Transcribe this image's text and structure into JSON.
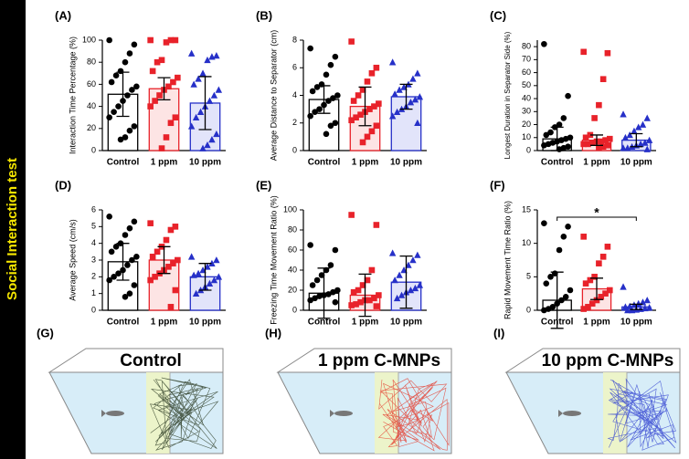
{
  "side_title": "Social Interaction test",
  "chart_data": [
    {
      "type": "bar",
      "label": "(A)",
      "y_label": "Interaction Time Percentage (%)",
      "categories": [
        "Control",
        "1 ppm",
        "10 ppm"
      ],
      "values": [
        51,
        56,
        43
      ],
      "errors": [
        20,
        10,
        24
      ],
      "colors": [
        "#000000",
        "#e8222a",
        "#2630c8"
      ],
      "fills": [
        "#ffffff",
        "#fde4e4",
        "#e2e4fa"
      ],
      "markers": [
        "circle",
        "square",
        "triangle"
      ],
      "ylim": [
        0,
        100
      ],
      "yticks": [
        0,
        20,
        40,
        60,
        80,
        100
      ],
      "points": [
        [
          100,
          96,
          88,
          80,
          72,
          68,
          62,
          58,
          55,
          50,
          45,
          40,
          35,
          30,
          22,
          18,
          12,
          10
        ],
        [
          100,
          100,
          100,
          98,
          82,
          80,
          72,
          66,
          62,
          58,
          55,
          50,
          45,
          40,
          30,
          25,
          12,
          2
        ],
        [
          88,
          86,
          85,
          82,
          70,
          65,
          60,
          55,
          50,
          45,
          40,
          35,
          30,
          22,
          15,
          10,
          5,
          2
        ]
      ]
    },
    {
      "type": "bar",
      "label": "(B)",
      "y_label": "Average Distance to Separator (cm)",
      "categories": [
        "Control",
        "1 ppm",
        "10 ppm"
      ],
      "values": [
        3.7,
        3.2,
        3.9
      ],
      "errors": [
        1.0,
        1.4,
        0.9
      ],
      "colors": [
        "#000000",
        "#e8222a",
        "#2630c8"
      ],
      "fills": [
        "#ffffff",
        "#fde4e4",
        "#e2e4fa"
      ],
      "markers": [
        "circle",
        "square",
        "triangle"
      ],
      "ylim": [
        0,
        8
      ],
      "yticks": [
        0,
        2,
        4,
        6,
        8
      ],
      "points": [
        [
          7.4,
          6.8,
          6.2,
          5.5,
          4.8,
          4.6,
          4.3,
          4.0,
          3.8,
          3.6,
          3.3,
          3.0,
          2.8,
          2.5,
          2.0,
          1.8,
          1.2
        ],
        [
          7.9,
          6.0,
          5.6,
          5.0,
          4.4,
          4.0,
          3.6,
          3.4,
          3.2,
          3.0,
          2.8,
          2.6,
          2.4,
          2.2,
          1.8,
          1.4,
          1.0,
          0.6
        ],
        [
          6.4,
          5.6,
          5.2,
          4.8,
          4.6,
          4.4,
          4.1,
          3.9,
          3.7,
          3.5,
          3.2,
          3.0,
          2.8,
          2.5,
          2.0
        ]
      ]
    },
    {
      "type": "bar",
      "label": "(C)",
      "y_label": "Longest  Duration in Separator Side (%)",
      "categories": [
        "Control",
        "1 ppm",
        "10 ppm"
      ],
      "values": [
        9,
        8,
        8
      ],
      "errors": [
        9,
        4,
        5
      ],
      "colors": [
        "#000000",
        "#e8222a",
        "#2630c8"
      ],
      "fills": [
        "#ffffff",
        "#fde4e4",
        "#e2e4fa"
      ],
      "markers": [
        "circle",
        "square",
        "triangle"
      ],
      "ylim": [
        0,
        85
      ],
      "yticks": [
        0,
        10,
        20,
        30,
        40,
        50,
        60,
        70,
        80
      ],
      "points": [
        [
          82,
          42,
          25,
          20,
          18,
          14,
          12,
          10,
          9,
          8,
          7,
          6,
          5,
          4,
          3,
          2,
          1
        ],
        [
          76,
          75,
          55,
          35,
          25,
          12,
          10,
          9,
          8,
          7,
          7,
          6,
          5,
          5,
          4,
          3,
          2
        ],
        [
          28,
          25,
          20,
          18,
          15,
          12,
          10,
          8,
          6,
          5,
          4,
          3,
          2,
          2,
          1
        ]
      ]
    },
    {
      "type": "bar",
      "label": "(D)",
      "y_label": "Average Speed (cm/s)",
      "categories": [
        "Control",
        "1 ppm",
        "10 ppm"
      ],
      "values": [
        2.9,
        3.0,
        2.0
      ],
      "errors": [
        1.1,
        0.8,
        0.8
      ],
      "colors": [
        "#000000",
        "#e8222a",
        "#2630c8"
      ],
      "fills": [
        "#ffffff",
        "#fde4e4",
        "#e2e4fa"
      ],
      "markers": [
        "circle",
        "square",
        "triangle"
      ],
      "ylim": [
        0,
        6
      ],
      "yticks": [
        0,
        1,
        2,
        3,
        4,
        5,
        6
      ],
      "points": [
        [
          5.6,
          5.3,
          4.9,
          4.5,
          4.0,
          3.8,
          3.5,
          3.2,
          3.0,
          2.7,
          2.4,
          2.2,
          2.0,
          1.8,
          1.5,
          1.0,
          0.8
        ],
        [
          5.2,
          5.0,
          4.8,
          4.2,
          3.8,
          3.5,
          3.2,
          3.0,
          2.8,
          2.6,
          2.4,
          2.2,
          2.0,
          1.8,
          1.2,
          0.2
        ],
        [
          3.2,
          3.0,
          2.8,
          2.6,
          2.4,
          2.2,
          2.1,
          2.0,
          1.8,
          1.6,
          1.4,
          1.2,
          1.0
        ]
      ]
    },
    {
      "type": "bar",
      "label": "(E)",
      "y_label": "Freezing Time Movement Ratio (%)",
      "categories": [
        "Control",
        "1 ppm",
        "10 ppm"
      ],
      "values": [
        17,
        15,
        28
      ],
      "errors": [
        25,
        21,
        26
      ],
      "colors": [
        "#000000",
        "#e8222a",
        "#2630c8"
      ],
      "fills": [
        "#ffffff",
        "#fde4e4",
        "#e2e4fa"
      ],
      "markers": [
        "circle",
        "square",
        "triangle"
      ],
      "ylim": [
        0,
        100
      ],
      "yticks": [
        0,
        20,
        40,
        60,
        80,
        100
      ],
      "points": [
        [
          65,
          60,
          45,
          40,
          35,
          30,
          25,
          20,
          18,
          16,
          15,
          14,
          12,
          10,
          8
        ],
        [
          95,
          85,
          40,
          30,
          25,
          20,
          18,
          15,
          12,
          10,
          10,
          8,
          6,
          5,
          4
        ],
        [
          57,
          55,
          50,
          45,
          40,
          35,
          30,
          25,
          22,
          20,
          18,
          15,
          12
        ]
      ]
    },
    {
      "type": "bar",
      "label": "(F)",
      "y_label": "Rapid Movement Time Ratio (%)",
      "categories": [
        "Control",
        "1 ppm",
        "10 ppm"
      ],
      "values": [
        1.5,
        3.2,
        0.5
      ],
      "errors": [
        4.2,
        1.6,
        0.4
      ],
      "colors": [
        "#000000",
        "#e8222a",
        "#2630c8"
      ],
      "fills": [
        "#ffffff",
        "#fde4e4",
        "#e2e4fa"
      ],
      "markers": [
        "circle",
        "square",
        "triangle"
      ],
      "ylim": [
        0,
        15
      ],
      "yticks": [
        0,
        5,
        10,
        15
      ],
      "annotation": "*",
      "points": [
        [
          13,
          12.5,
          11,
          9,
          5.5,
          5,
          4,
          3,
          2,
          1.5,
          1,
          0.5,
          0.2,
          0
        ],
        [
          11,
          9.5,
          8,
          7,
          5,
          4.5,
          4,
          3,
          2.5,
          2,
          1.5,
          1,
          0.5,
          0.2
        ],
        [
          3.5,
          1.5,
          1.2,
          1,
          0.8,
          0.6,
          0.5,
          0.4,
          0.3,
          0.2,
          0.1,
          0,
          0
        ]
      ]
    }
  ],
  "panels": [
    {
      "label": "(G)",
      "title": "Control"
    },
    {
      "label": "(H)",
      "title": "1 ppm C-MNPs"
    },
    {
      "label": "(I)",
      "title": "10 ppm C-MNPs"
    }
  ]
}
